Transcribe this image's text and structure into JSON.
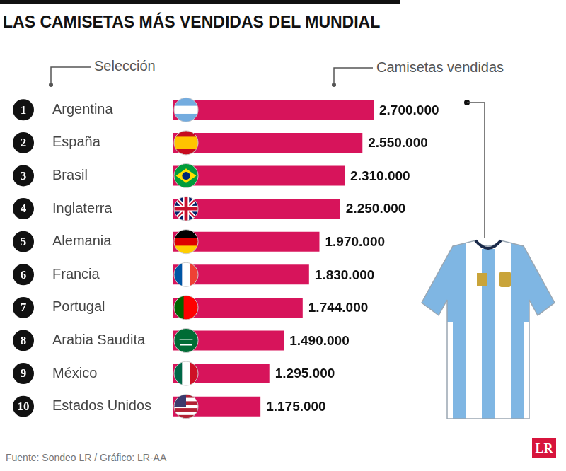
{
  "chart_data": {
    "type": "bar",
    "title": "LAS CAMISETAS MÁS VENDIDAS DEL MUNDIAL",
    "y_label": "Selección",
    "x_label": "Camisetas vendidas",
    "categories": [
      "Argentina",
      "España",
      "Brasil",
      "Inglaterra",
      "Alemania",
      "Francia",
      "Portugal",
      "Arabia Saudita",
      "México",
      "Estados Unidos"
    ],
    "ranks": [
      1,
      2,
      3,
      4,
      5,
      6,
      7,
      8,
      9,
      10
    ],
    "values": [
      2700000,
      2550000,
      2310000,
      2250000,
      1970000,
      1830000,
      1744000,
      1490000,
      1295000,
      1175000
    ],
    "value_labels": [
      "2.700.000",
      "2.550.000",
      "2.310.000",
      "2.250.000",
      "1.970.000",
      "1.830.000",
      "1.744.000",
      "1.490.000",
      "1.295.000",
      "1.175.000"
    ],
    "color": "#d7145b",
    "orientation": "horizontal",
    "data_labels": true,
    "tick_labels": "y",
    "grid": false,
    "xlim": [
      0,
      2700000
    ]
  },
  "source": "Fuente: Sondeo LR / Gráfico: LR-AA",
  "logo": "LR"
}
